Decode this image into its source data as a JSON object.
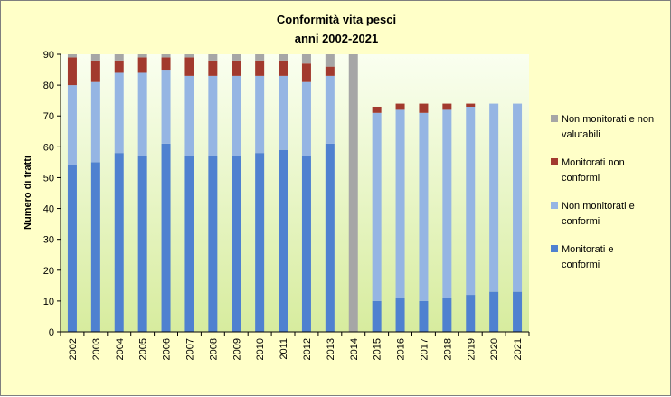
{
  "chart_data": {
    "type": "bar",
    "stacked": true,
    "title_lines": [
      "Conformità vita pesci",
      "anni 2002-2021"
    ],
    "ylabel": "Numero di tratti",
    "xlabel": "",
    "ylim": [
      0,
      90
    ],
    "yticks": [
      0,
      10,
      20,
      30,
      40,
      50,
      60,
      70,
      80,
      90
    ],
    "grid": false,
    "legend_position": "right",
    "categories": [
      "2002",
      "2003",
      "2004",
      "2005",
      "2006",
      "2007",
      "2008",
      "2009",
      "2010",
      "2011",
      "2012",
      "2013",
      "2014",
      "2015",
      "2016",
      "2017",
      "2018",
      "2019",
      "2020",
      "2021"
    ],
    "series": [
      {
        "name": "Monitorati e conformi",
        "legend_lines": [
          "Monitorati e",
          "conformi"
        ],
        "color": "#4f81d0",
        "values": [
          54,
          55,
          58,
          57,
          61,
          57,
          57,
          57,
          58,
          59,
          57,
          61,
          0,
          10,
          11,
          10,
          11,
          12,
          13,
          13
        ]
      },
      {
        "name": "Non monitorati e conformi",
        "legend_lines": [
          "Non monitorati e",
          "conformi"
        ],
        "color": "#95b5e3",
        "values": [
          26,
          26,
          26,
          27,
          24,
          26,
          26,
          26,
          25,
          24,
          24,
          22,
          0,
          61,
          61,
          61,
          61,
          61,
          61,
          61
        ]
      },
      {
        "name": "Monitorati non conformi",
        "legend_lines": [
          "Monitorati non",
          "conformi"
        ],
        "color": "#a23a2e",
        "values": [
          9,
          7,
          4,
          5,
          4,
          6,
          5,
          5,
          5,
          5,
          6,
          3,
          0,
          2,
          2,
          3,
          2,
          1,
          0,
          0
        ]
      },
      {
        "name": "Non monitorati e non valutabili",
        "legend_lines": [
          "Non monitorati e non",
          "valutabili"
        ],
        "color": "#a6a6a6",
        "values": [
          1,
          2,
          2,
          1,
          1,
          1,
          2,
          2,
          2,
          2,
          3,
          4,
          90,
          0,
          0,
          0,
          0,
          0,
          0,
          0
        ]
      }
    ]
  }
}
